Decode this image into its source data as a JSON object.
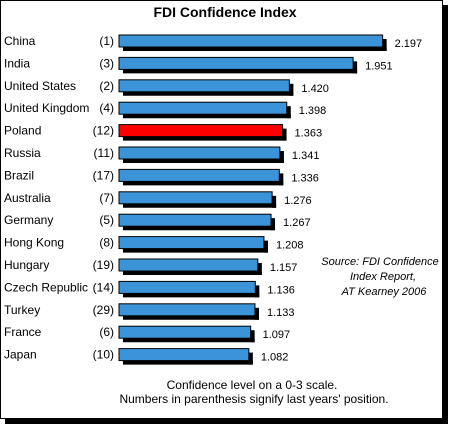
{
  "chart_data": {
    "type": "bar",
    "orientation": "horizontal",
    "title": "FDI Confidence Index",
    "categories": [
      "China",
      "India",
      "United States",
      "United Kingdom",
      "Poland",
      "Russia",
      "Brazil",
      "Australia",
      "Germany",
      "Hong Kong",
      "Hungary",
      "Czech Republic",
      "Turkey",
      "France",
      "Japan"
    ],
    "previous_positions": [
      "(1)",
      "(3)",
      "(2)",
      "(4)",
      "(12)",
      "(11)",
      "(17)",
      "(7)",
      "(5)",
      "(8)",
      "(19)",
      "(14)",
      "(29)",
      "(6)",
      "(10)"
    ],
    "values": [
      2.197,
      1.951,
      1.42,
      1.398,
      1.363,
      1.341,
      1.336,
      1.276,
      1.267,
      1.208,
      1.157,
      1.136,
      1.133,
      1.097,
      1.082
    ],
    "value_labels": [
      "2.197",
      "1.951",
      "1.420",
      "1.398",
      "1.363",
      "1.341",
      "1.336",
      "1.276",
      "1.267",
      "1.208",
      "1.157",
      "1.136",
      "1.133",
      "1.097",
      "1.082"
    ],
    "xlim": [
      0,
      2.25
    ],
    "colors": {
      "default": "#3b93d8",
      "highlight": "#ff0000"
    },
    "highlight_category": "Poland",
    "source_lines": [
      "Source: FDI Confidence",
      "Index Report,",
      "AT Kearney 2006"
    ],
    "footnote_lines": [
      "Confidence level on a 0-3 scale.",
      "Numbers in parenthesis signify last years' position."
    ],
    "grid": false,
    "legend": "none"
  }
}
